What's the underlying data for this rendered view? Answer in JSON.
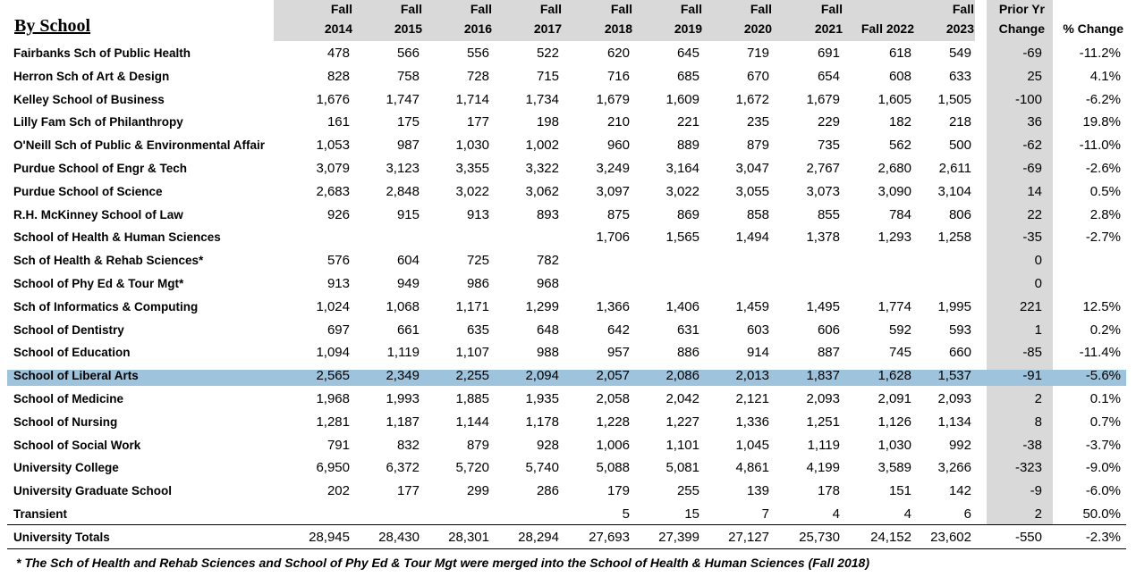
{
  "title": "By School",
  "columns": [
    {
      "line1": "Fall",
      "line2": "2014"
    },
    {
      "line1": "Fall",
      "line2": "2015"
    },
    {
      "line1": "Fall",
      "line2": "2016"
    },
    {
      "line1": "Fall",
      "line2": "2017"
    },
    {
      "line1": "Fall",
      "line2": "2018"
    },
    {
      "line1": "Fall",
      "line2": "2019"
    },
    {
      "line1": "Fall",
      "line2": "2020"
    },
    {
      "line1": "Fall",
      "line2": "2021"
    },
    {
      "line1": "",
      "line2": "Fall 2022"
    },
    {
      "line1": "Fall",
      "line2": "2023"
    },
    {
      "line1": "Prior Yr",
      "line2": "Change"
    },
    {
      "line1": "",
      "line2": "% Change"
    }
  ],
  "rows": [
    {
      "school": "Fairbanks Sch of Public Health",
      "values": [
        "478",
        "566",
        "556",
        "522",
        "620",
        "645",
        "719",
        "691",
        "618",
        "549",
        "-69",
        "-11.2%"
      ]
    },
    {
      "school": "Herron Sch of Art & Design",
      "values": [
        "828",
        "758",
        "728",
        "715",
        "716",
        "685",
        "670",
        "654",
        "608",
        "633",
        "25",
        "4.1%"
      ]
    },
    {
      "school": "Kelley School of Business",
      "values": [
        "1,676",
        "1,747",
        "1,714",
        "1,734",
        "1,679",
        "1,609",
        "1,672",
        "1,679",
        "1,605",
        "1,505",
        "-100",
        "-6.2%"
      ]
    },
    {
      "school": "Lilly Fam Sch of Philanthropy",
      "values": [
        "161",
        "175",
        "177",
        "198",
        "210",
        "221",
        "235",
        "229",
        "182",
        "218",
        "36",
        "19.8%"
      ]
    },
    {
      "school": "O'Neill Sch of Public & Environmental Affair",
      "values": [
        "1,053",
        "987",
        "1,030",
        "1,002",
        "960",
        "889",
        "879",
        "735",
        "562",
        "500",
        "-62",
        "-11.0%"
      ]
    },
    {
      "school": "Purdue School of Engr & Tech",
      "values": [
        "3,079",
        "3,123",
        "3,355",
        "3,322",
        "3,249",
        "3,164",
        "3,047",
        "2,767",
        "2,680",
        "2,611",
        "-69",
        "-2.6%"
      ]
    },
    {
      "school": "Purdue School of Science",
      "values": [
        "2,683",
        "2,848",
        "3,022",
        "3,062",
        "3,097",
        "3,022",
        "3,055",
        "3,073",
        "3,090",
        "3,104",
        "14",
        "0.5%"
      ]
    },
    {
      "school": "R.H. McKinney School of Law",
      "values": [
        "926",
        "915",
        "913",
        "893",
        "875",
        "869",
        "858",
        "855",
        "784",
        "806",
        "22",
        "2.8%"
      ]
    },
    {
      "school": "School of Health & Human Sciences",
      "values": [
        "",
        "",
        "",
        "",
        "1,706",
        "1,565",
        "1,494",
        "1,378",
        "1,293",
        "1,258",
        "-35",
        "-2.7%"
      ]
    },
    {
      "school": "Sch of Health & Rehab Sciences*",
      "values": [
        "576",
        "604",
        "725",
        "782",
        "",
        "",
        "",
        "",
        "",
        "",
        "0",
        ""
      ]
    },
    {
      "school": "School of Phy Ed & Tour Mgt*",
      "values": [
        "913",
        "949",
        "986",
        "968",
        "",
        "",
        "",
        "",
        "",
        "",
        "0",
        ""
      ]
    },
    {
      "school": "Sch of Informatics & Computing",
      "values": [
        "1,024",
        "1,068",
        "1,171",
        "1,299",
        "1,366",
        "1,406",
        "1,459",
        "1,495",
        "1,774",
        "1,995",
        "221",
        "12.5%"
      ]
    },
    {
      "school": "School of Dentistry",
      "values": [
        "697",
        "661",
        "635",
        "648",
        "642",
        "631",
        "603",
        "606",
        "592",
        "593",
        "1",
        "0.2%"
      ]
    },
    {
      "school": "School of Education",
      "values": [
        "1,094",
        "1,119",
        "1,107",
        "988",
        "957",
        "886",
        "914",
        "887",
        "745",
        "660",
        "-85",
        "-11.4%"
      ]
    },
    {
      "school": "School of Liberal Arts",
      "values": [
        "2,565",
        "2,349",
        "2,255",
        "2,094",
        "2,057",
        "2,086",
        "2,013",
        "1,837",
        "1,628",
        "1,537",
        "-91",
        "-5.6%"
      ]
    },
    {
      "school": "School of Medicine",
      "values": [
        "1,968",
        "1,993",
        "1,885",
        "1,935",
        "2,058",
        "2,042",
        "2,121",
        "2,093",
        "2,091",
        "2,093",
        "2",
        "0.1%"
      ]
    },
    {
      "school": "School of Nursing",
      "values": [
        "1,281",
        "1,187",
        "1,144",
        "1,178",
        "1,228",
        "1,227",
        "1,336",
        "1,251",
        "1,126",
        "1,134",
        "8",
        "0.7%"
      ]
    },
    {
      "school": "School of Social Work",
      "values": [
        "791",
        "832",
        "879",
        "928",
        "1,006",
        "1,101",
        "1,045",
        "1,119",
        "1,030",
        "992",
        "-38",
        "-3.7%"
      ]
    },
    {
      "school": "University College",
      "values": [
        "6,950",
        "6,372",
        "5,720",
        "5,740",
        "5,088",
        "5,081",
        "4,861",
        "4,199",
        "3,589",
        "3,266",
        "-323",
        "-9.0%"
      ]
    },
    {
      "school": "University Graduate School",
      "values": [
        "202",
        "177",
        "299",
        "286",
        "179",
        "255",
        "139",
        "178",
        "151",
        "142",
        "-9",
        "-6.0%"
      ]
    },
    {
      "school": "Transient",
      "values": [
        "",
        "",
        "",
        "",
        "5",
        "15",
        "7",
        "4",
        "4",
        "6",
        "2",
        "50.0%"
      ]
    }
  ],
  "totals": {
    "school": "University Totals",
    "values": [
      "28,945",
      "28,430",
      "28,301",
      "28,294",
      "27,693",
      "27,399",
      "27,127",
      "25,730",
      "24,152",
      "23,602",
      "-550",
      "-2.3%"
    ]
  },
  "footnote": "* The Sch of Health and Rehab Sciences and School of Phy Ed & Tour Mgt were merged into the School of Health & Human Sciences (Fall 2018)"
}
